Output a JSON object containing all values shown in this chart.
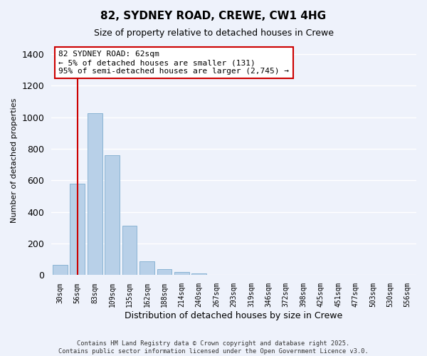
{
  "title": "82, SYDNEY ROAD, CREWE, CW1 4HG",
  "subtitle": "Size of property relative to detached houses in Crewe",
  "xlabel": "Distribution of detached houses by size in Crewe",
  "ylabel": "Number of detached properties",
  "bar_labels": [
    "30sqm",
    "56sqm",
    "83sqm",
    "109sqm",
    "135sqm",
    "162sqm",
    "188sqm",
    "214sqm",
    "240sqm",
    "267sqm",
    "293sqm",
    "319sqm",
    "346sqm",
    "372sqm",
    "398sqm",
    "425sqm",
    "451sqm",
    "477sqm",
    "503sqm",
    "530sqm",
    "556sqm"
  ],
  "bar_values": [
    65,
    580,
    1025,
    760,
    315,
    90,
    40,
    20,
    10,
    0,
    0,
    0,
    0,
    0,
    0,
    0,
    0,
    0,
    0,
    0,
    0
  ],
  "bar_color": "#b8d0e8",
  "bar_edge_color": "#8ab4d4",
  "vline_x": 1,
  "vline_color": "#cc0000",
  "annotation_title": "82 SYDNEY ROAD: 62sqm",
  "annotation_line1": "← 5% of detached houses are smaller (131)",
  "annotation_line2": "95% of semi-detached houses are larger (2,745) →",
  "ylim": [
    0,
    1450
  ],
  "yticks": [
    0,
    200,
    400,
    600,
    800,
    1000,
    1200,
    1400
  ],
  "background_color": "#eef2fb",
  "grid_color": "#ffffff",
  "footer1": "Contains HM Land Registry data © Crown copyright and database right 2025.",
  "footer2": "Contains public sector information licensed under the Open Government Licence v3.0."
}
